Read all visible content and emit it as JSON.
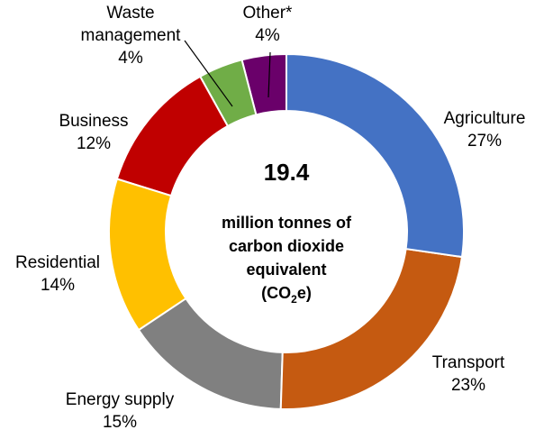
{
  "chart_data": {
    "type": "donut",
    "categories": [
      "Agriculture",
      "Transport",
      "Energy supply",
      "Residential",
      "Business",
      "Waste management",
      "Other*"
    ],
    "values": [
      27,
      23,
      15,
      14,
      12,
      4,
      4
    ],
    "value_labels": [
      "27%",
      "23%",
      "15%",
      "14%",
      "12%",
      "4%",
      "4%"
    ],
    "colors": [
      "#4472c4",
      "#c55a11",
      "#808080",
      "#ffc000",
      "#c00000",
      "#70ad47",
      "#6a006a"
    ],
    "center_value": 19.4,
    "center_lines": [
      "million tonnes of",
      "carbon dioxide",
      "equivalent"
    ],
    "center_formula": [
      "(CO",
      "2",
      "e)"
    ]
  }
}
